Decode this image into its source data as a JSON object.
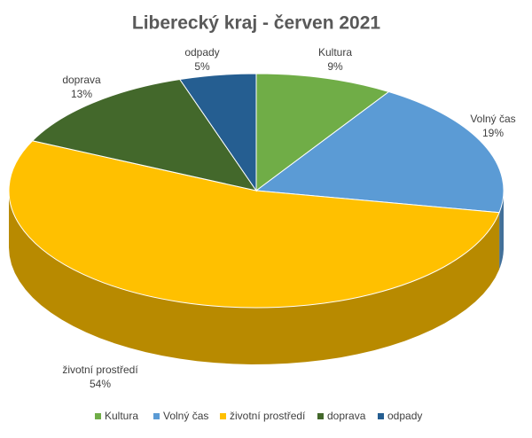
{
  "chart_data": {
    "type": "pie3d",
    "title": "Liberecký kraj - červen 2021",
    "categories": [
      "Kultura",
      "Volný čas",
      "životní prostředí",
      "doprava",
      "odpady"
    ],
    "values": [
      9,
      19,
      54,
      13,
      5
    ],
    "value_labels": [
      "9%",
      "19%",
      "54%",
      "13%",
      "5%"
    ],
    "colors": [
      "#70ad47",
      "#5b9bd5",
      "#ffc000",
      "#43682b",
      "#255e91"
    ],
    "legend": "bottom"
  }
}
